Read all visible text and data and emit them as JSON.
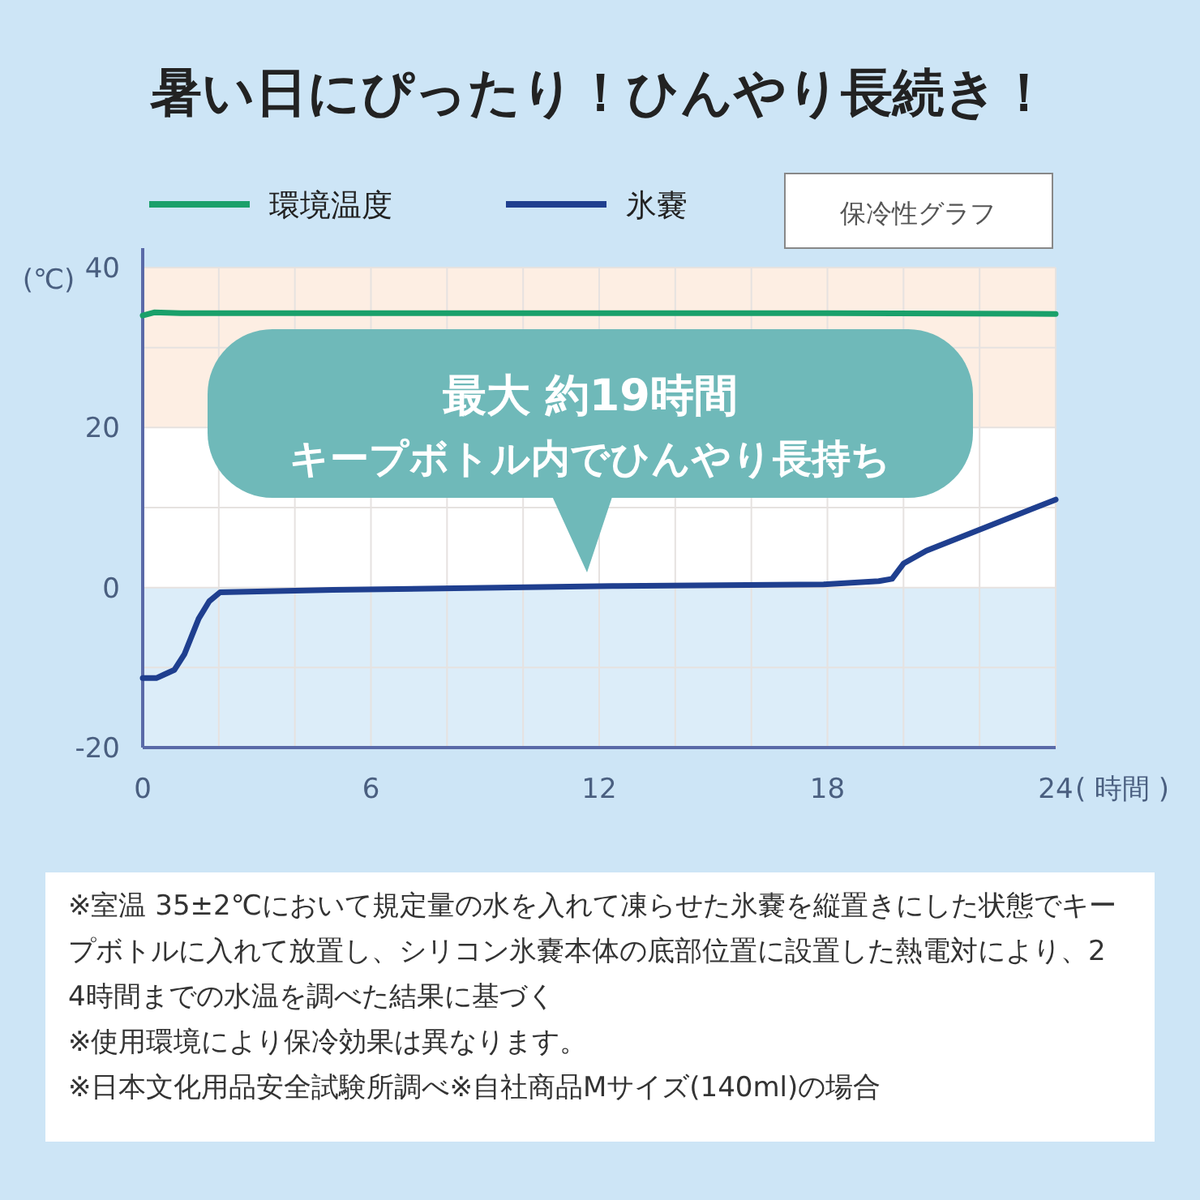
{
  "chart_data": {
    "type": "line",
    "title": "暑い日にぴったり！ひんやり長続き！",
    "subtitle": "保冷性グラフ",
    "xlabel": "( 時間 )",
    "ylabel": "(℃)",
    "series": [
      {
        "name": "環境温度",
        "color": "#1aa06a",
        "x": [
          0,
          0.3,
          1,
          6,
          12,
          18,
          24
        ],
        "values": [
          34,
          34.4,
          34.3,
          34.3,
          34.3,
          34.3,
          34.2
        ]
      },
      {
        "name": "氷嚢",
        "color": "#1f3f8f",
        "x": [
          0,
          0.37,
          0.55,
          0.83,
          1.1,
          1.47,
          1.75,
          2.03,
          5,
          12.35,
          17.9,
          19.35,
          19.7,
          20,
          20.6,
          24
        ],
        "values": [
          -11.3,
          -11.3,
          -10.9,
          -10.3,
          -8.3,
          -3.9,
          -1.7,
          -0.6,
          -0.3,
          0.2,
          0.4,
          0.8,
          1.1,
          3,
          4.6,
          11
        ]
      }
    ],
    "xlim": [
      0,
      24
    ],
    "ylim": [
      -20,
      40
    ],
    "xticks": [
      0,
      {
        "value": 2,
        "label": null
      },
      {
        "value": 4,
        "label": null
      },
      6,
      {
        "value": 8,
        "label": null
      },
      {
        "value": 10,
        "label": null
      },
      12,
      {
        "value": 14,
        "label": null
      },
      {
        "value": 16,
        "label": null
      },
      18,
      {
        "value": 20,
        "label": null
      },
      {
        "value": 22,
        "label": null
      },
      24
    ],
    "yticks": [
      -20,
      {
        "value": -10,
        "label": null
      },
      0,
      {
        "value": 10,
        "label": null
      },
      20,
      {
        "value": 30,
        "label": null
      },
      40
    ],
    "bands": [
      {
        "axis": "y",
        "from": 20,
        "to": 40,
        "color": "#fdeee3"
      },
      {
        "axis": "y",
        "from": -20,
        "to": 0,
        "color": "#dcedf9"
      }
    ],
    "grid": true,
    "legend": "top",
    "annotations": [
      "最大 約19時間",
      "キープボトル内でひんやり長持ち",
      "※室温 35±2℃において規定量の水を入れて凍らせた氷嚢を縦置きにした状態でキープボトルに入れて放置し、シリコン氷嚢本体の底部位置に設置した熱電対により、24時間までの水温を調べた結果に基づく",
      "※使用環境により保冷効果は異なります。",
      "※日本文化用品安全試験所調べ※自社商品Mサイズ(140ml)の場合"
    ]
  }
}
